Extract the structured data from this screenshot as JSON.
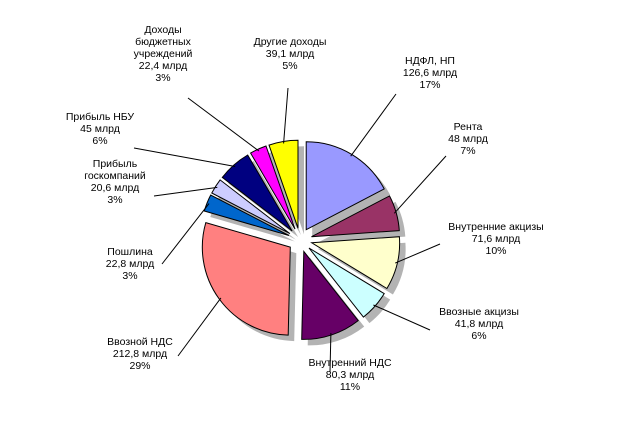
{
  "chart_data": {
    "type": "pie",
    "style": "exploded-3d",
    "slices": [
      {
        "name": "НДФЛ, НП",
        "value_text": "126,6 млрд",
        "value": 126.6,
        "percent_text": "17%",
        "percent": 17,
        "color": "#9999FF"
      },
      {
        "name": "Рента",
        "value_text": "48 млрд",
        "value": 48,
        "percent_text": "7%",
        "percent": 7,
        "color": "#993366"
      },
      {
        "name": "Внутренние акцизы",
        "value_text": "71,6 млрд",
        "value": 71.6,
        "percent_text": "10%",
        "percent": 10,
        "color": "#FFFFCC"
      },
      {
        "name": "Ввозные акцизы",
        "value_text": "41,8 млрд",
        "value": 41.8,
        "percent_text": "6%",
        "percent": 6,
        "color": "#CCFFFF"
      },
      {
        "name": "Внутренний НДС",
        "value_text": "80,3 млрд",
        "value": 80.3,
        "percent_text": "11%",
        "percent": 11,
        "color": "#660066"
      },
      {
        "name": "Ввозной НДС",
        "value_text": "212,8 млрд",
        "value": 212.8,
        "percent_text": "29%",
        "percent": 29,
        "color": "#FF8080"
      },
      {
        "name": "Пошлина",
        "value_text": "22,8 млрд",
        "value": 22.8,
        "percent_text": "3%",
        "percent": 3,
        "color": "#0066CC"
      },
      {
        "name": "Прибыль госкомпаний",
        "value_text": "20,6 млрд",
        "value": 20.6,
        "percent_text": "3%",
        "percent": 3,
        "color": "#CCCCFF"
      },
      {
        "name": "Прибыль НБУ",
        "value_text": "45 млрд",
        "value": 45,
        "percent_text": "6%",
        "percent": 6,
        "color": "#000080"
      },
      {
        "name": "Доходы бюджетных учреждений",
        "value_text": "22,4 млрд",
        "value": 22.4,
        "percent_text": "3%",
        "percent": 3,
        "color": "#FF00FF"
      },
      {
        "name": "Другие доходы",
        "value_text": "39,1 млрд",
        "value": 39.1,
        "percent_text": "5%",
        "percent": 5,
        "color": "#FFFF00"
      }
    ]
  }
}
